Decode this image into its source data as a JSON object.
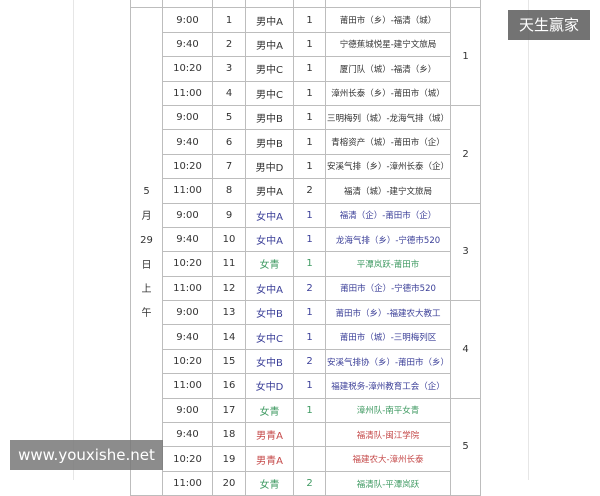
{
  "watermarks": {
    "top_right": "天生赢家",
    "bottom_left": "www.youxishe.net"
  },
  "colors": {
    "default": "#333333",
    "women": "#3b3f98",
    "youth_women": "#3f9a62",
    "youth_men": "#c54a4a"
  },
  "date_label": [
    "5",
    "月",
    "29",
    "日",
    "上",
    "午"
  ],
  "courts": [
    "1",
    "2",
    "3",
    "4",
    "5"
  ],
  "rows": [
    {
      "time": "9:00",
      "no": "1",
      "group": "男中A",
      "round": "1",
      "match": "莆田市（乡）-福清（城）",
      "color": "default"
    },
    {
      "time": "9:40",
      "no": "2",
      "group": "男中A",
      "round": "1",
      "match": "宁德蕉城悦星-建宁文旅局",
      "color": "default"
    },
    {
      "time": "10:20",
      "no": "3",
      "group": "男中C",
      "round": "1",
      "match": "厦门队（城）-福清（乡）",
      "color": "default"
    },
    {
      "time": "11:00",
      "no": "4",
      "group": "男中C",
      "round": "1",
      "match": "漳州长泰（乡）-莆田市（城）",
      "color": "default"
    },
    {
      "time": "9:00",
      "no": "5",
      "group": "男中B",
      "round": "1",
      "match": "三明梅列（城）-龙海气排（城）",
      "color": "default"
    },
    {
      "time": "9:40",
      "no": "6",
      "group": "男中B",
      "round": "1",
      "match": "青榕资产（城）-莆田市（企）",
      "color": "default"
    },
    {
      "time": "10:20",
      "no": "7",
      "group": "男中D",
      "round": "1",
      "match": "安溪气排（乡）-漳州长泰（企）",
      "color": "default"
    },
    {
      "time": "11:00",
      "no": "8",
      "group": "男中A",
      "round": "2",
      "match": "福清（城）-建宁文旅局",
      "color": "default"
    },
    {
      "time": "9:00",
      "no": "9",
      "group": "女中A",
      "round": "1",
      "match": "福清（企）-莆田市（企）",
      "color": "women"
    },
    {
      "time": "9:40",
      "no": "10",
      "group": "女中A",
      "round": "1",
      "match": "龙海气排（乡）-宁德市520",
      "color": "women"
    },
    {
      "time": "10:20",
      "no": "11",
      "group": "女青",
      "round": "1",
      "match": "平潭岚跃-莆田市",
      "color": "youth_women"
    },
    {
      "time": "11:00",
      "no": "12",
      "group": "女中A",
      "round": "2",
      "match": "莆田市（企）-宁德市520",
      "color": "women"
    },
    {
      "time": "9:00",
      "no": "13",
      "group": "女中B",
      "round": "1",
      "match": "莆田市（乡）-福建农大教工",
      "color": "women"
    },
    {
      "time": "9:40",
      "no": "14",
      "group": "女中C",
      "round": "1",
      "match": "莆田市（城）-三明梅列区",
      "color": "women"
    },
    {
      "time": "10:20",
      "no": "15",
      "group": "女中B",
      "round": "2",
      "match": "安溪气排协（乡）-莆田市（乡）",
      "color": "women"
    },
    {
      "time": "11:00",
      "no": "16",
      "group": "女中D",
      "round": "1",
      "match": "福建税务-漳州教育工会（企）",
      "color": "women"
    },
    {
      "time": "9:00",
      "no": "17",
      "group": "女青",
      "round": "1",
      "match": "漳州队-南平女青",
      "color": "youth_women"
    },
    {
      "time": "9:40",
      "no": "18",
      "group": "男青A",
      "round": "",
      "match": "福清队-闽江学院",
      "color": "youth_men"
    },
    {
      "time": "10:20",
      "no": "19",
      "group": "男青A",
      "round": "",
      "match": "福建农大-漳州长泰",
      "color": "youth_men"
    },
    {
      "time": "11:00",
      "no": "20",
      "group": "女青",
      "round": "2",
      "match": "福清队-平潭岚跃",
      "color": "youth_women"
    }
  ]
}
